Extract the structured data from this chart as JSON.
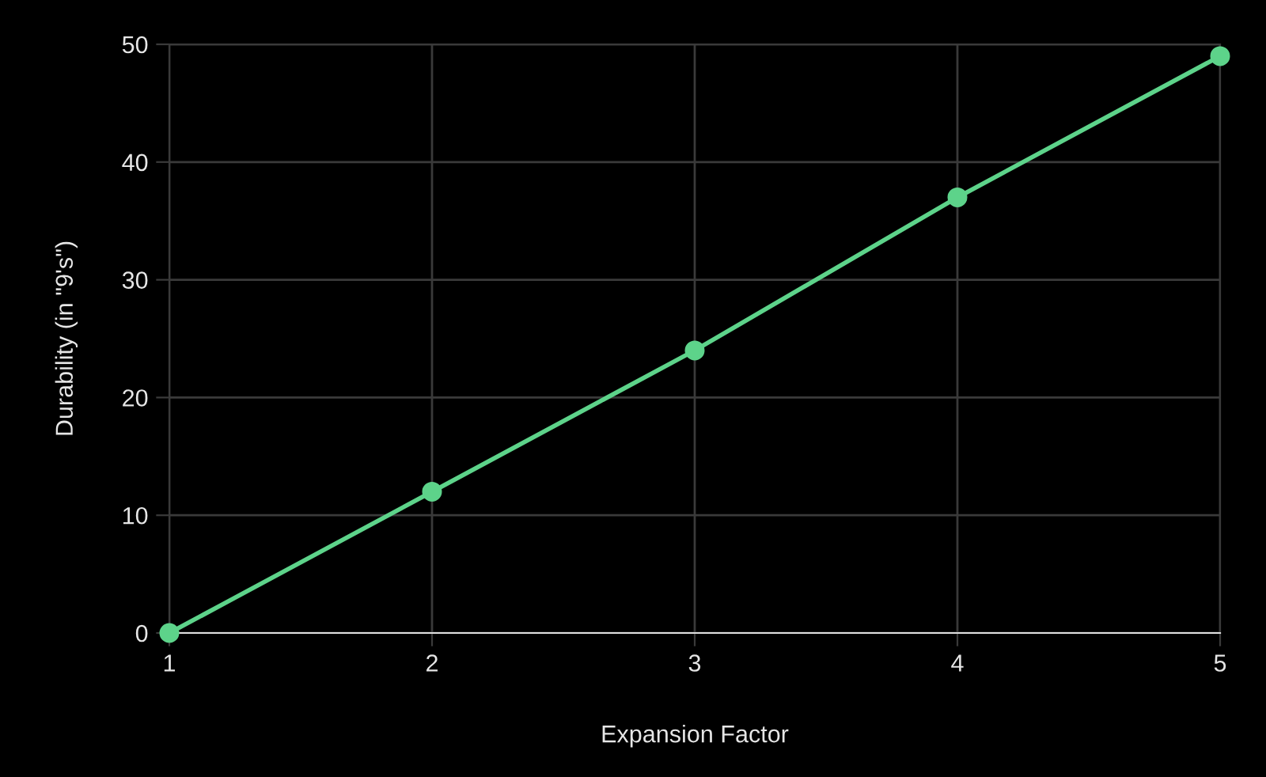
{
  "chart_data": {
    "type": "line",
    "xlabel": "Expansion Factor",
    "ylabel": "Durability (in \"9's\")",
    "x": [
      1,
      2,
      3,
      4,
      5
    ],
    "series": [
      {
        "color": "#5dd38a",
        "values": [
          0,
          12,
          24,
          37,
          49
        ]
      }
    ],
    "xlim": [
      1,
      5
    ],
    "xticks": [
      1,
      2,
      3,
      4,
      5
    ],
    "ylim": [
      0,
      50
    ],
    "yticks": [
      0,
      10,
      20,
      30,
      40,
      50
    ],
    "grid": true,
    "marker": "circle",
    "line_style": "solid",
    "legend": false
  }
}
